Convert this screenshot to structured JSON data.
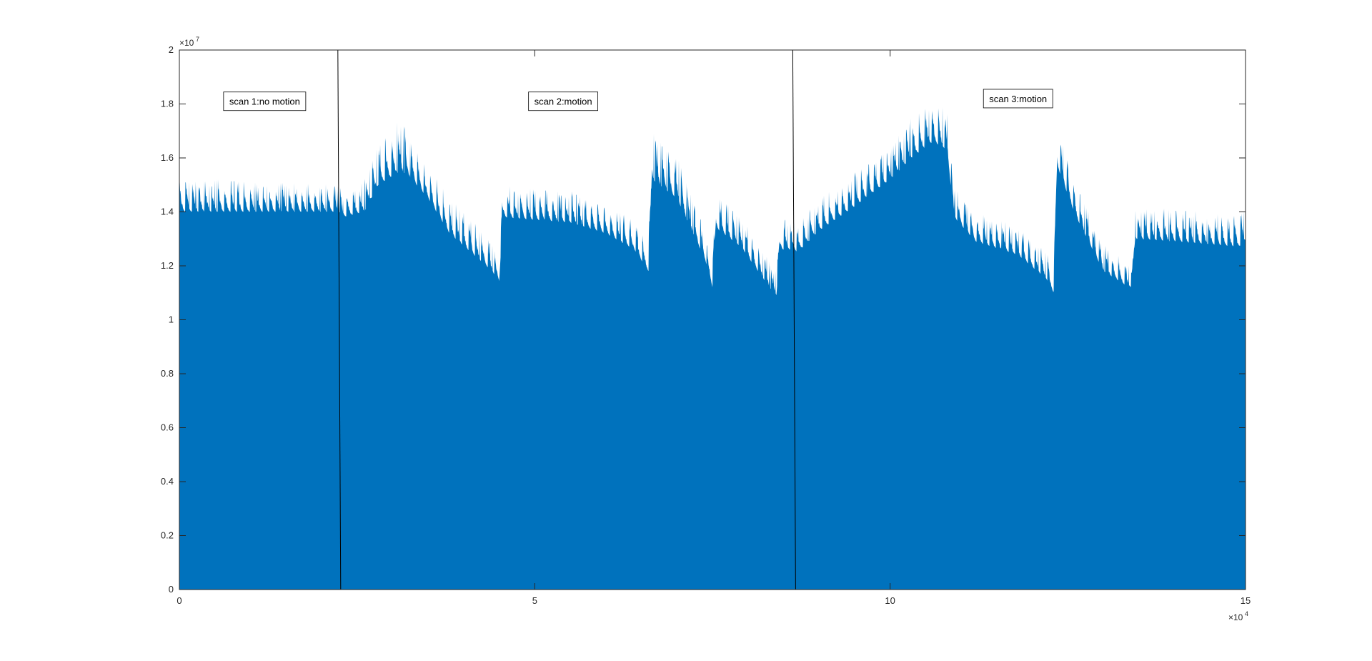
{
  "chart_data": {
    "type": "area",
    "title": "",
    "xlabel": "",
    "ylabel": "",
    "xlim": [
      0,
      150000
    ],
    "ylim": [
      0,
      20000000
    ],
    "x_ticks": [
      0,
      50000,
      100000,
      150000
    ],
    "x_tick_labels": [
      "0",
      "5",
      "10",
      "15"
    ],
    "y_ticks": [
      0,
      2000000,
      4000000,
      6000000,
      8000000,
      10000000,
      12000000,
      14000000,
      16000000,
      18000000,
      20000000
    ],
    "y_tick_labels": [
      "0",
      "0.2",
      "0.4",
      "0.6",
      "0.8",
      "1",
      "1.2",
      "1.4",
      "1.6",
      "1.8",
      "2"
    ],
    "x_exponent": {
      "base": "×10",
      "power": "4"
    },
    "y_exponent": {
      "base": "×10",
      "power": "7"
    },
    "grid": false,
    "box": true,
    "colors": {
      "fill": "#0072BD",
      "axes": "#262626",
      "separator": "#000000"
    },
    "series": [
      {
        "envelope_x": [
          0,
          2000,
          5000,
          8000,
          11000,
          14000,
          17000,
          20000,
          22500,
          23000,
          26000,
          28000,
          31000,
          32000,
          35000,
          38000,
          41000,
          44000,
          45000,
          45500,
          50000,
          55000,
          60000,
          64000,
          66000,
          66500,
          70000,
          74000,
          75000,
          75500,
          79000,
          83000,
          84000,
          84500,
          86500,
          87000,
          90000,
          95000,
          100000,
          103000,
          106000,
          108000,
          109000,
          112000,
          118000,
          122000,
          123000,
          123500,
          126000,
          130000,
          133000,
          134000,
          134500,
          140000,
          145000,
          149000,
          150000
        ],
        "envelope_y": [
          15200000,
          15300000,
          15200000,
          15200000,
          15100000,
          15100000,
          15100000,
          15100000,
          15000000,
          14700000,
          15200000,
          16500000,
          17500000,
          17000000,
          15700000,
          14500000,
          13800000,
          12800000,
          12400000,
          15000000,
          14900000,
          14800000,
          14300000,
          13700000,
          12800000,
          17000000,
          16200000,
          13300000,
          12200000,
          14800000,
          13900000,
          12200000,
          11800000,
          13800000,
          13700000,
          13600000,
          14500000,
          15500000,
          16500000,
          17500000,
          18200000,
          17800000,
          15000000,
          14000000,
          13500000,
          12500000,
          11900000,
          17300000,
          15200000,
          12800000,
          12200000,
          12100000,
          14300000,
          14100000,
          14000000,
          13900000,
          14200000
        ],
        "base_y": [
          14000000,
          14000000,
          14000000,
          14000000,
          14000000,
          14000000,
          14000000,
          14000000,
          14000000,
          13800000,
          14000000,
          15000000,
          15500000,
          15400000,
          14500000,
          13200000,
          12500000,
          11800000,
          11400000,
          13800000,
          13700000,
          13600000,
          13200000,
          12600000,
          11800000,
          15200000,
          14500000,
          12200000,
          11200000,
          13400000,
          12700000,
          11200000,
          10900000,
          12600000,
          12600000,
          12500000,
          13300000,
          14200000,
          15200000,
          16000000,
          16600000,
          16300000,
          13800000,
          12900000,
          12400000,
          11500000,
          11000000,
          15700000,
          13900000,
          11800000,
          11300000,
          11200000,
          13000000,
          12900000,
          12800000,
          12700000,
          12900000
        ]
      }
    ],
    "separators_x": [
      22500,
      86500
    ],
    "annotations": [
      {
        "text": "scan 1:no motion",
        "x": 12000,
        "y": 18100000
      },
      {
        "text": "scan 2:motion",
        "x": 54000,
        "y": 18100000
      },
      {
        "text": "scan 3:motion",
        "x": 118000,
        "y": 18200000
      }
    ]
  }
}
